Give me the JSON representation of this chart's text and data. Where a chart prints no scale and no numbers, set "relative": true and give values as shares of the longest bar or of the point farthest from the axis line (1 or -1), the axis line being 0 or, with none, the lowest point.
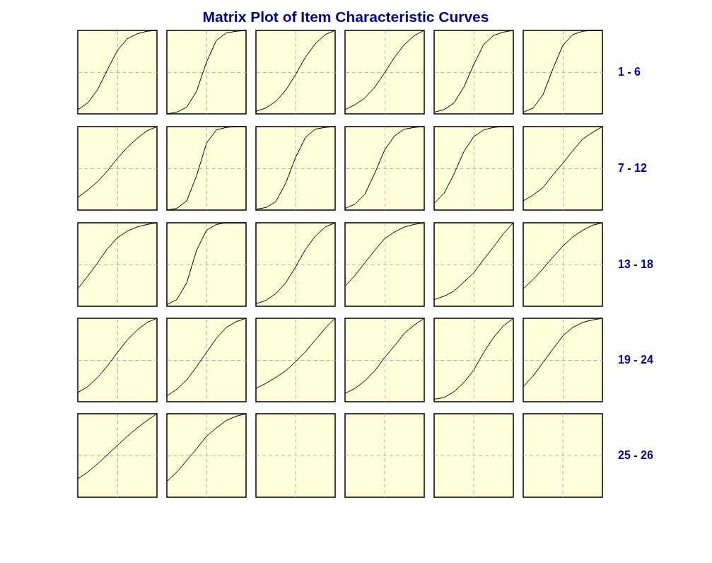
{
  "chart_data": [
    {
      "type": "line",
      "relative": true,
      "grid": true,
      "color": "#000000",
      "categories": [
        null,
        null,
        null,
        null,
        null,
        null,
        null,
        null,
        null
      ],
      "values": [
        0.05,
        0.13,
        0.29,
        0.53,
        0.76,
        0.9,
        0.96,
        0.99,
        1
      ]
    },
    {
      "type": "line",
      "relative": true,
      "grid": true,
      "color": "#000000",
      "categories": [
        null,
        null,
        null,
        null,
        null,
        null,
        null,
        null,
        null
      ],
      "values": [
        0.0,
        0.02,
        0.08,
        0.27,
        0.62,
        0.88,
        0.97,
        0.99,
        1
      ]
    },
    {
      "type": "line",
      "relative": true,
      "grid": true,
      "color": "#000000",
      "categories": [
        null,
        null,
        null,
        null,
        null,
        null,
        null,
        null,
        null
      ],
      "values": [
        0.03,
        0.07,
        0.15,
        0.28,
        0.47,
        0.68,
        0.84,
        0.95,
        1
      ]
    },
    {
      "type": "line",
      "title": "Matrix Plot of Item Characteristic Curves",
      "relative": true,
      "grid": true,
      "color": "#000000",
      "categories": [
        null,
        null,
        null,
        null,
        null,
        null,
        null,
        null,
        null
      ],
      "values": [
        0.05,
        0.11,
        0.19,
        0.32,
        0.49,
        0.68,
        0.83,
        0.94,
        1
      ]
    },
    {
      "type": "line",
      "relative": true,
      "grid": true,
      "color": "#000000",
      "categories": [
        null,
        null,
        null,
        null,
        null,
        null,
        null,
        null,
        null
      ],
      "values": [
        0.02,
        0.05,
        0.13,
        0.32,
        0.59,
        0.83,
        0.94,
        0.98,
        1
      ]
    },
    {
      "type": "line",
      "relative": true,
      "grid": true,
      "color": "#000000",
      "annotations": [
        "1 - 6"
      ],
      "categories": [
        null,
        null,
        null,
        null,
        null,
        null,
        null,
        null,
        null
      ],
      "values": [
        0.02,
        0.07,
        0.23,
        0.54,
        0.82,
        0.95,
        0.99,
        1,
        1
      ]
    },
    {
      "type": "line",
      "relative": true,
      "grid": true,
      "color": "#000000",
      "categories": [
        null,
        null,
        null,
        null,
        null,
        null,
        null,
        null,
        null
      ],
      "values": [
        0.15,
        0.24,
        0.34,
        0.47,
        0.62,
        0.75,
        0.86,
        0.95,
        1
      ]
    },
    {
      "type": "line",
      "relative": true,
      "grid": true,
      "color": "#000000",
      "categories": [
        null,
        null,
        null,
        null,
        null,
        null,
        null,
        null,
        null
      ],
      "values": [
        0.0,
        0.02,
        0.11,
        0.41,
        0.8,
        0.96,
        0.99,
        1,
        1
      ]
    },
    {
      "type": "line",
      "relative": true,
      "grid": true,
      "color": "#000000",
      "categories": [
        null,
        null,
        null,
        null,
        null,
        null,
        null,
        null,
        null
      ],
      "values": [
        0.01,
        0.03,
        0.1,
        0.32,
        0.63,
        0.87,
        0.97,
        0.99,
        1
      ]
    },
    {
      "type": "line",
      "relative": true,
      "grid": true,
      "color": "#000000",
      "categories": [
        null,
        null,
        null,
        null,
        null,
        null,
        null,
        null,
        null
      ],
      "values": [
        0.02,
        0.07,
        0.19,
        0.44,
        0.72,
        0.89,
        0.97,
        0.99,
        1
      ]
    },
    {
      "type": "line",
      "relative": true,
      "grid": true,
      "color": "#000000",
      "categories": [
        null,
        null,
        null,
        null,
        null,
        null,
        null,
        null,
        null
      ],
      "values": [
        0.08,
        0.2,
        0.43,
        0.7,
        0.88,
        0.96,
        0.99,
        1,
        1
      ]
    },
    {
      "type": "line",
      "relative": true,
      "grid": true,
      "color": "#000000",
      "annotations": [
        "7 - 12"
      ],
      "categories": [
        null,
        null,
        null,
        null,
        null,
        null,
        null,
        null,
        null
      ],
      "values": [
        0.11,
        0.18,
        0.27,
        0.42,
        0.56,
        0.71,
        0.85,
        0.93,
        1
      ]
    },
    {
      "type": "line",
      "relative": true,
      "grid": true,
      "color": "#000000",
      "categories": [
        null,
        null,
        null,
        null,
        null,
        null,
        null,
        null,
        null
      ],
      "values": [
        0.21,
        0.36,
        0.52,
        0.69,
        0.82,
        0.9,
        0.95,
        0.98,
        1
      ]
    },
    {
      "type": "line",
      "relative": true,
      "grid": true,
      "color": "#000000",
      "categories": [
        null,
        null,
        null,
        null,
        null,
        null,
        null,
        null,
        null
      ],
      "values": [
        0.02,
        0.08,
        0.28,
        0.67,
        0.91,
        0.98,
        1,
        1,
        1
      ]
    },
    {
      "type": "line",
      "relative": true,
      "grid": true,
      "color": "#000000",
      "categories": [
        null,
        null,
        null,
        null,
        null,
        null,
        null,
        null,
        null
      ],
      "values": [
        0.03,
        0.07,
        0.15,
        0.28,
        0.47,
        0.68,
        0.84,
        0.95,
        1
      ]
    },
    {
      "type": "line",
      "relative": true,
      "grid": true,
      "color": "#000000",
      "categories": [
        null,
        null,
        null,
        null,
        null,
        null,
        null,
        null,
        null
      ],
      "values": [
        0.24,
        0.37,
        0.52,
        0.67,
        0.81,
        0.89,
        0.95,
        0.98,
        1
      ]
    },
    {
      "type": "line",
      "relative": true,
      "grid": true,
      "color": "#000000",
      "categories": [
        null,
        null,
        null,
        null,
        null,
        null,
        null,
        null,
        null
      ],
      "values": [
        0.08,
        0.12,
        0.18,
        0.29,
        0.4,
        0.56,
        0.71,
        0.87,
        1
      ]
    },
    {
      "type": "line",
      "relative": true,
      "grid": true,
      "color": "#000000",
      "annotations": [
        "13 - 18"
      ],
      "categories": [
        null,
        null,
        null,
        null,
        null,
        null,
        null,
        null,
        null
      ],
      "values": [
        0.21,
        0.32,
        0.45,
        0.59,
        0.72,
        0.83,
        0.91,
        0.97,
        1
      ]
    },
    {
      "type": "line",
      "relative": true,
      "grid": true,
      "color": "#000000",
      "categories": [
        null,
        null,
        null,
        null,
        null,
        null,
        null,
        null,
        null
      ],
      "values": [
        0.11,
        0.18,
        0.29,
        0.43,
        0.59,
        0.74,
        0.86,
        0.95,
        1
      ]
    },
    {
      "type": "line",
      "relative": true,
      "grid": true,
      "color": "#000000",
      "categories": [
        null,
        null,
        null,
        null,
        null,
        null,
        null,
        null,
        null
      ],
      "values": [
        0.07,
        0.15,
        0.26,
        0.42,
        0.59,
        0.76,
        0.89,
        0.96,
        1
      ]
    },
    {
      "type": "line",
      "relative": true,
      "grid": true,
      "color": "#000000",
      "categories": [
        null,
        null,
        null,
        null,
        null,
        null,
        null,
        null,
        null
      ],
      "values": [
        0.16,
        0.22,
        0.29,
        0.37,
        0.48,
        0.6,
        0.74,
        0.88,
        1
      ]
    },
    {
      "type": "line",
      "relative": true,
      "grid": true,
      "color": "#000000",
      "categories": [
        null,
        null,
        null,
        null,
        null,
        null,
        null,
        null,
        null
      ],
      "values": [
        0.1,
        0.16,
        0.25,
        0.37,
        0.53,
        0.67,
        0.82,
        0.92,
        1
      ]
    },
    {
      "type": "line",
      "relative": true,
      "grid": true,
      "color": "#000000",
      "categories": [
        null,
        null,
        null,
        null,
        null,
        null,
        null,
        null,
        null
      ],
      "values": [
        0.03,
        0.05,
        0.12,
        0.23,
        0.38,
        0.59,
        0.77,
        0.91,
        1
      ]
    },
    {
      "type": "line",
      "relative": true,
      "grid": true,
      "color": "#000000",
      "annotations": [
        "19 - 24"
      ],
      "categories": [
        null,
        null,
        null,
        null,
        null,
        null,
        null,
        null,
        null
      ],
      "values": [
        0.18,
        0.31,
        0.47,
        0.63,
        0.79,
        0.89,
        0.95,
        0.98,
        1
      ]
    },
    {
      "type": "line",
      "relative": true,
      "grid": true,
      "color": "#000000",
      "categories": [
        null,
        null,
        null,
        null,
        null,
        null,
        null,
        null,
        null
      ],
      "values": [
        0.22,
        0.3,
        0.4,
        0.51,
        0.62,
        0.73,
        0.83,
        0.92,
        1
      ]
    },
    {
      "type": "line",
      "relative": true,
      "grid": true,
      "color": "#000000",
      "categories": [
        null,
        null,
        null,
        null,
        null,
        null,
        null,
        null,
        null
      ],
      "values": [
        0.19,
        0.3,
        0.44,
        0.58,
        0.73,
        0.83,
        0.92,
        0.97,
        1
      ]
    },
    {
      "type": "other"
    },
    {
      "type": "other"
    },
    {
      "type": "other"
    },
    {
      "type": "other",
      "annotations": [
        "25 - 26"
      ]
    }
  ]
}
